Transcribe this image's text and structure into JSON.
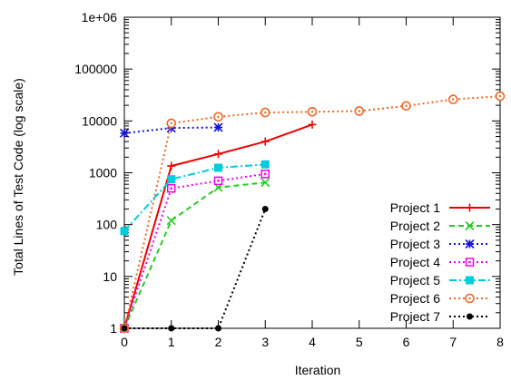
{
  "chart_data": {
    "type": "line",
    "xlabel": "Iteration",
    "ylabel": "Total Lines of Test Code (log scale)",
    "y_scale": "log",
    "xlim": [
      0,
      8
    ],
    "ylim": [
      1,
      1000000
    ],
    "x_ticks": [
      "0",
      "1",
      "2",
      "3",
      "4",
      "5",
      "6",
      "7",
      "8"
    ],
    "y_ticks": [
      "1",
      "10",
      "100",
      "1000",
      "10000",
      "100000",
      "1e+06"
    ],
    "grid": false,
    "legend_position": "bottom-right",
    "series": [
      {
        "name": "Project 1",
        "color": "#ee0000",
        "dash": "solid",
        "marker": "plus",
        "x": [
          0,
          1,
          2,
          3,
          4
        ],
        "y": [
          1,
          1350,
          2300,
          4000,
          8500
        ]
      },
      {
        "name": "Project 2",
        "color": "#22cc22",
        "dash": "dashed",
        "marker": "cross",
        "x": [
          0,
          1,
          2,
          3
        ],
        "y": [
          1,
          120,
          520,
          650
        ]
      },
      {
        "name": "Project 3",
        "color": "#1111dd",
        "dash": "dotted",
        "marker": "star",
        "x": [
          0,
          1,
          2
        ],
        "y": [
          5800,
          7300,
          7500
        ]
      },
      {
        "name": "Project 4",
        "color": "#ee00ee",
        "dash": "dotted",
        "marker": "square-open",
        "x": [
          0,
          1,
          2,
          3
        ],
        "y": [
          1,
          500,
          700,
          950
        ]
      },
      {
        "name": "Project 5",
        "color": "#00ccdd",
        "dash": "dashdot",
        "marker": "square-filled",
        "x": [
          0,
          1,
          2,
          3
        ],
        "y": [
          75,
          750,
          1250,
          1450
        ]
      },
      {
        "name": "Project 6",
        "color": "#ee6622",
        "dash": "dotted",
        "marker": "circle-open",
        "x": [
          0,
          1,
          2,
          3,
          4,
          5,
          6,
          7,
          8
        ],
        "y": [
          1,
          9000,
          12000,
          14500,
          15000,
          15500,
          19500,
          26000,
          30000
        ]
      },
      {
        "name": "Project 7",
        "color": "#000000",
        "dash": "dotted",
        "marker": "circle-filled",
        "x": [
          0,
          1,
          2,
          3
        ],
        "y": [
          1,
          1,
          1,
          200
        ]
      }
    ]
  }
}
